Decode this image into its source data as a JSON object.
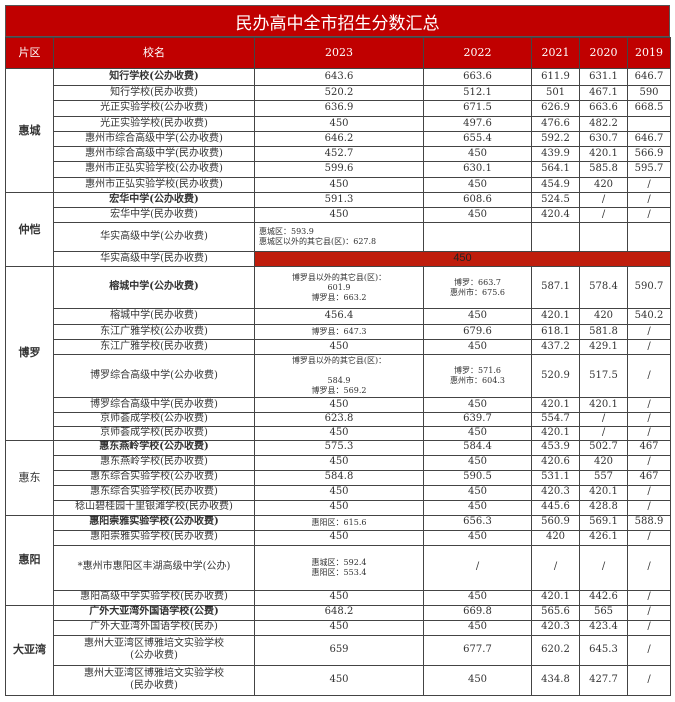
{
  "title": "民办高中全市招生分数汇总",
  "headers": [
    "片区",
    "校名",
    "2023",
    "2022",
    "2021",
    "2020",
    "2019"
  ],
  "colors": {
    "header_bg": "#c00000",
    "highlight_cell": "#bf1d0c"
  },
  "regions": [
    {
      "name": "惠城",
      "bold": true,
      "rows": [
        {
          "school": "知行学校(公办收费)",
          "bold": true,
          "cells": [
            "643.6",
            "663.6",
            "611.9",
            "631.1",
            "646.7"
          ]
        },
        {
          "school": "知行学校(民办收费)",
          "cells": [
            "520.2",
            "512.1",
            "501",
            "467.1",
            "590"
          ]
        },
        {
          "school": "光正实验学校(公办收费)",
          "cells": [
            "636.9",
            "671.5",
            "626.9",
            "663.6",
            "668.5"
          ]
        },
        {
          "school": "光正实验学校(民办收费)",
          "cells": [
            "450",
            "497.6",
            "476.6",
            "482.2",
            ""
          ]
        },
        {
          "school": "惠州市综合高级中学(公办收费)",
          "cells": [
            "646.2",
            "655.4",
            "592.2",
            "630.7",
            "646.7"
          ]
        },
        {
          "school": "惠州市综合高级中学(民办收费)",
          "cells": [
            "452.7",
            "450",
            "439.9",
            "420.1",
            "566.9"
          ]
        },
        {
          "school": "惠州市正弘实验学校(公办收费)",
          "cells": [
            "599.6",
            "630.1",
            "564.1",
            "585.8",
            "595.7"
          ]
        },
        {
          "school": "惠州市正弘实验学校(民办收费)",
          "cells": [
            "450",
            "450",
            "454.9",
            "420",
            "/"
          ]
        }
      ]
    },
    {
      "name": "仲恺",
      "bold": true,
      "rows": [
        {
          "school": "宏华中学(公办收费)",
          "bold": true,
          "cells": [
            "591.3",
            "608.6",
            "524.5",
            "/",
            "/"
          ]
        },
        {
          "school": "宏华中学(民办收费)",
          "cells": [
            "450",
            "450",
            "420.4",
            "/",
            "/"
          ]
        },
        {
          "school": "华实高级中学(公办收费)",
          "cells": [
            "惠城区：593.9\n惠城区以外的其它县(区)：627.8",
            "",
            "",
            "",
            ""
          ],
          "small2023": true
        },
        {
          "school": "华实高级中学(民办收费)",
          "merged": true,
          "cells": [
            "450"
          ]
        }
      ]
    },
    {
      "name": "博罗",
      "bold": true,
      "rows": [
        {
          "school": "榕城中学(公办收费)",
          "bold": true,
          "cells": [
            "博罗县以外的其它县(区)：\n601.9\n博罗县：663.2",
            "博罗：663.7\n惠州市：675.6",
            "587.1",
            "578.4",
            "590.7"
          ]
        },
        {
          "school": "榕城中学(民办收费)",
          "cells": [
            "456.4",
            "450",
            "420.1",
            "420",
            "540.2"
          ]
        },
        {
          "school": "东江广雅学校(公办收费)",
          "cells": [
            "博罗县：647.3",
            "679.6",
            "618.1",
            "581.8",
            "/"
          ]
        },
        {
          "school": "东江广雅学校(民办收费)",
          "cells": [
            "450",
            "450",
            "437.2",
            "429.1",
            "/"
          ]
        },
        {
          "school": "博罗综合高级中学(公办收费)",
          "cells": [
            "博罗县以外的其它县(区)：\n\n584.9\n博罗县：569.2",
            "博罗：571.6\n惠州市：604.3",
            "520.9",
            "517.5",
            "/"
          ]
        },
        {
          "school": "博罗综合高级中学(民办收费)",
          "cells": [
            "450",
            "450",
            "420.1",
            "420.1",
            "/"
          ]
        },
        {
          "school": "京师荟成学校(公办收费)",
          "cells": [
            "623.8",
            "639.7",
            "554.7",
            "/",
            "/"
          ]
        },
        {
          "school": "京师荟成学校(民办收费)",
          "cells": [
            "450",
            "450",
            "420.1",
            "/",
            "/"
          ]
        }
      ]
    },
    {
      "name": "惠东",
      "bold": false,
      "rows": [
        {
          "school": "惠东燕岭学校(公办收费)",
          "bold": true,
          "cells": [
            "575.3",
            "584.4",
            "453.9",
            "502.7",
            "467"
          ]
        },
        {
          "school": "惠东燕岭学校(民办收费)",
          "cells": [
            "450",
            "450",
            "420.6",
            "420",
            "/"
          ]
        },
        {
          "school": "惠东综合实验学校(公办收费)",
          "cells": [
            "584.8",
            "590.5",
            "531.1",
            "557",
            "467"
          ]
        },
        {
          "school": "惠东综合实验学校(民办收费)",
          "cells": [
            "450",
            "450",
            "420.3",
            "420.1",
            "/"
          ]
        },
        {
          "school": "稔山碧桂园十里银滩学校(民办收费)",
          "cells": [
            "450",
            "450",
            "445.6",
            "428.8",
            "/"
          ]
        }
      ]
    },
    {
      "name": "惠阳",
      "bold": true,
      "rows": [
        {
          "school": "惠阳崇雅实验学校(公办收费)",
          "bold": true,
          "cells": [
            "惠阳区：615.6",
            "656.3",
            "560.9",
            "569.1",
            "588.9"
          ]
        },
        {
          "school": "惠阳崇雅实验学校(民办收费)",
          "cells": [
            "450",
            "450",
            "420",
            "426.1",
            "/"
          ]
        },
        {
          "school": "*惠州市惠阳区丰湖高级中学(公办)",
          "cells": [
            "惠城区：592.4\n惠阳区：553.4",
            "/",
            "/",
            "/",
            "/"
          ]
        },
        {
          "school": "惠阳高级中学实验学校(民办收费)",
          "cells": [
            "450",
            "450",
            "420.1",
            "442.6",
            "/"
          ]
        }
      ]
    },
    {
      "name": "大亚湾",
      "bold": true,
      "rows": [
        {
          "school": "广外大亚湾外国语学校(公费)",
          "bold": true,
          "cells": [
            "648.2",
            "669.8",
            "565.6",
            "565",
            "/"
          ]
        },
        {
          "school": "广外大亚湾外国语学校(民办)",
          "cells": [
            "450",
            "450",
            "420.3",
            "423.4",
            "/"
          ]
        },
        {
          "school": "惠州大亚湾区博雅培文实验学校\n(公办收费)",
          "cells": [
            "659",
            "677.7",
            "620.2",
            "645.3",
            "/"
          ]
        },
        {
          "school": "惠州大亚湾区博雅培文实验学校\n(民办收费)",
          "cells": [
            "450",
            "450",
            "434.8",
            "427.7",
            "/"
          ]
        }
      ]
    }
  ]
}
